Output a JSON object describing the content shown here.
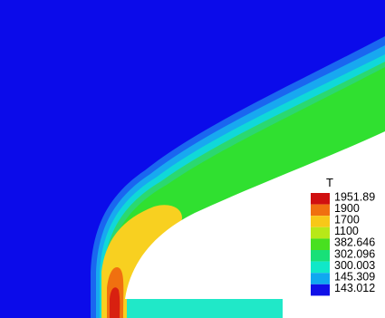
{
  "legend": {
    "title": "T",
    "levels": [
      {
        "label": "1951.89",
        "color": "#d01010"
      },
      {
        "label": "1900",
        "color": "#f07010"
      },
      {
        "label": "1700",
        "color": "#f8c818"
      },
      {
        "label": "1100",
        "color": "#b8e818"
      },
      {
        "label": "382.646",
        "color": "#48e020"
      },
      {
        "label": "302.096",
        "color": "#18e078"
      },
      {
        "label": "300.003",
        "color": "#10e8c8"
      },
      {
        "label": "145.309",
        "color": "#10a8f0"
      },
      {
        "label": "143.012",
        "color": "#1010e8"
      }
    ]
  },
  "colors": {
    "background": "#0b0bea",
    "free_stream": "#0b0bea",
    "shock_outer": "#1a66f0",
    "shock_band_1": "#18a8f0",
    "shock_band_2": "#10d8d8",
    "post_shock": "#2bd870",
    "shock_layer": "#30e030",
    "hot_core": "#f8d020",
    "very_hot": "#f07010",
    "stagnation": "#d82010",
    "plate": "#20e8c8",
    "body_surface": "#ffffff"
  }
}
